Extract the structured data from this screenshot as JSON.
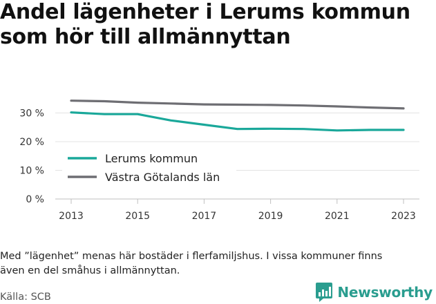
{
  "title_lines": [
    "Andel lägenheter i Lerums kommun",
    "som hör till allmännyttan"
  ],
  "note_lines": [
    "Med ”lägenhet” menas här bostäder i flerfamiljshus. I vissa kommuner finns",
    "även en del småhus i allmännyttan."
  ],
  "source": "Källa: SCB",
  "brand": {
    "name": "Newsworthy",
    "color": "#2a9d8f"
  },
  "chart_data": {
    "type": "line",
    "title": "Andel lägenheter i Lerums kommun som hör till allmännyttan",
    "x": [
      2013,
      2014,
      2015,
      2016,
      2017,
      2018,
      2019,
      2020,
      2021,
      2022,
      2023
    ],
    "x_ticks": [
      "2013",
      "2015",
      "2017",
      "2019",
      "2021",
      "2023"
    ],
    "y_ticks": [
      "0 %",
      "10 %",
      "20 %",
      "30 %"
    ],
    "ylim": [
      0,
      35
    ],
    "grid": true,
    "legend_position": "bottom-left",
    "series": [
      {
        "name": "Lerums kommun",
        "color": "#1aa89a",
        "values": [
          30.2,
          29.6,
          29.6,
          27.4,
          25.9,
          24.4,
          24.5,
          24.4,
          23.9,
          24.1,
          24.1
        ]
      },
      {
        "name": "Västra Götalands län",
        "color": "#6e6e73",
        "values": [
          34.3,
          34.1,
          33.6,
          33.3,
          33.0,
          32.9,
          32.8,
          32.6,
          32.3,
          31.9,
          31.6
        ]
      }
    ]
  }
}
